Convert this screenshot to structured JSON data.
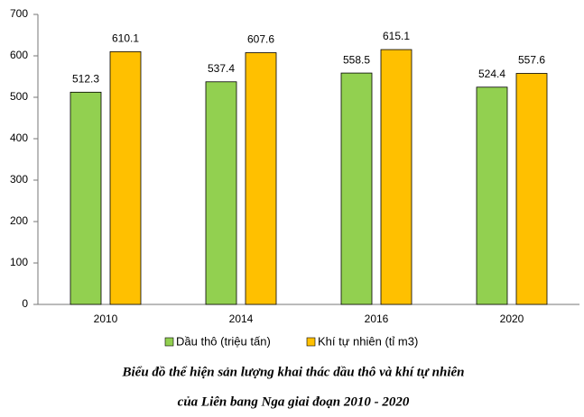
{
  "chart_data": {
    "type": "bar",
    "title": [
      "Biểu đồ thể hiện sản lượng khai thác dầu thô và khí tự nhiên",
      "của Liên bang Nga giai đoạn 2010 - 2020"
    ],
    "categories": [
      "2010",
      "2014",
      "2016",
      "2020"
    ],
    "series": [
      {
        "name": "Dầu thô (triệu tấn)",
        "color": "#92d050",
        "values": [
          512.3,
          537.4,
          558.5,
          524.4
        ]
      },
      {
        "name": "Khí tự nhiên (tỉ m3)",
        "color": "#ffc000",
        "values": [
          610.1,
          607.6,
          615.1,
          557.6
        ]
      }
    ],
    "ylim": [
      0,
      700
    ],
    "yticks": [
      0,
      100,
      200,
      300,
      400,
      500,
      600,
      700
    ],
    "grid": false,
    "legend": "bottom"
  }
}
